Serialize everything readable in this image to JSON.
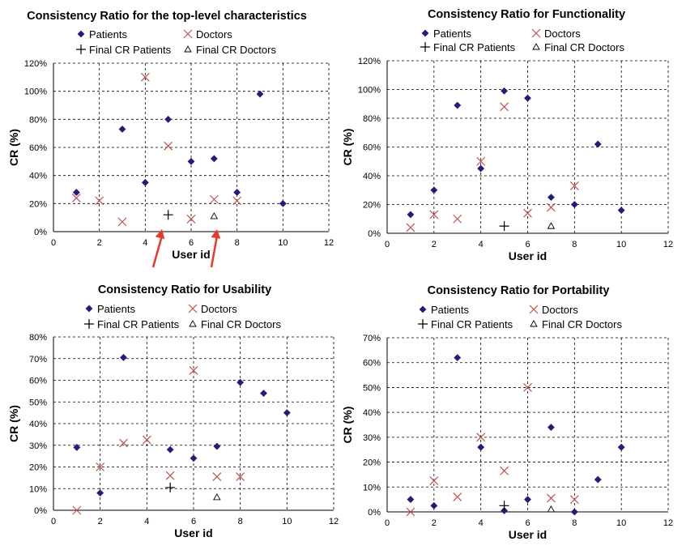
{
  "legend_labels": {
    "patients": "Patients",
    "doctors": "Doctors",
    "final_cr_patients": "Final CR Patients",
    "final_cr_doctors": "Final CR Doctors"
  },
  "colors": {
    "patients": "#1f1f7a",
    "doctors": "#c0504d",
    "final": "#000000",
    "grid": "#000000",
    "arrow": "#e8392a"
  },
  "chart_data": [
    {
      "id": "top",
      "type": "scatter",
      "title": "Consistency Ratio for the top-level characteristics",
      "xlabel": "User id",
      "ylabel": "CR (%)",
      "xlim": [
        0,
        12
      ],
      "ylim": [
        0,
        120
      ],
      "x_ticks": [
        0,
        2,
        4,
        6,
        8,
        10,
        12
      ],
      "y_ticks": [
        0,
        20,
        40,
        60,
        80,
        100,
        120
      ],
      "y_tick_labels": [
        "0%",
        "20%",
        "40%",
        "60%",
        "80%",
        "100%",
        "120%"
      ],
      "grid": true,
      "annotation": "two red arrows pointing at the final CR markers",
      "series": [
        {
          "name": "Patients",
          "marker": "diamond",
          "x": [
            1,
            3,
            4,
            5,
            6,
            7,
            8,
            9,
            10
          ],
          "y": [
            28,
            73,
            35,
            80,
            50,
            52,
            28,
            98,
            20
          ]
        },
        {
          "name": "Doctors",
          "marker": "x",
          "x": [
            1,
            2,
            3,
            4,
            5,
            6,
            7,
            8
          ],
          "y": [
            24,
            22,
            7,
            110,
            61,
            9,
            23,
            22
          ]
        },
        {
          "name": "Final CR Patients",
          "marker": "plus",
          "x": [
            5
          ],
          "y": [
            12
          ]
        },
        {
          "name": "Final CR Doctors",
          "marker": "triangle",
          "x": [
            7
          ],
          "y": [
            11
          ]
        }
      ]
    },
    {
      "id": "functionality",
      "type": "scatter",
      "title": "Consistency Ratio for Functionality",
      "xlabel": "User id",
      "ylabel": "CR (%)",
      "xlim": [
        0,
        12
      ],
      "ylim": [
        0,
        120
      ],
      "x_ticks": [
        0,
        2,
        4,
        6,
        8,
        10,
        12
      ],
      "y_ticks": [
        0,
        20,
        40,
        60,
        80,
        100,
        120
      ],
      "y_tick_labels": [
        "0%",
        "20%",
        "40%",
        "60%",
        "80%",
        "100%",
        "120%"
      ],
      "grid": true,
      "series": [
        {
          "name": "Patients",
          "marker": "diamond",
          "x": [
            1,
            2,
            3,
            4,
            5,
            6,
            7,
            8,
            9,
            10
          ],
          "y": [
            13,
            30,
            89,
            45,
            99,
            94,
            25,
            20,
            62,
            16
          ]
        },
        {
          "name": "Doctors",
          "marker": "x",
          "x": [
            1,
            2,
            3,
            4,
            5,
            6,
            7,
            8
          ],
          "y": [
            4,
            13,
            10,
            50,
            88,
            14,
            18,
            33
          ]
        },
        {
          "name": "Final CR Patients",
          "marker": "plus",
          "x": [
            5
          ],
          "y": [
            5
          ]
        },
        {
          "name": "Final CR Doctors",
          "marker": "triangle",
          "x": [
            7
          ],
          "y": [
            5
          ]
        }
      ]
    },
    {
      "id": "usability",
      "type": "scatter",
      "title": "Consistency Ratio for Usability",
      "xlabel": "User id",
      "ylabel": "CR (%)",
      "xlim": [
        0,
        12
      ],
      "ylim": [
        0,
        80
      ],
      "x_ticks": [
        0,
        2,
        4,
        6,
        8,
        10,
        12
      ],
      "y_ticks": [
        0,
        10,
        20,
        30,
        40,
        50,
        60,
        70,
        80
      ],
      "y_tick_labels": [
        "0%",
        "10%",
        "20%",
        "30%",
        "40%",
        "50%",
        "60%",
        "70%",
        "80%"
      ],
      "grid": true,
      "series": [
        {
          "name": "Patients",
          "marker": "diamond",
          "x": [
            1,
            2,
            3,
            5,
            6,
            7,
            8,
            9,
            10
          ],
          "y": [
            29,
            8,
            70.5,
            28,
            24,
            29.5,
            59,
            54,
            45
          ]
        },
        {
          "name": "Doctors",
          "marker": "x",
          "x": [
            1,
            2,
            3,
            4,
            5,
            6,
            7,
            8
          ],
          "y": [
            0,
            20,
            31,
            32.5,
            16,
            64.5,
            15.5,
            15.5
          ]
        },
        {
          "name": "Final CR Patients",
          "marker": "plus",
          "x": [
            5
          ],
          "y": [
            10.5
          ]
        },
        {
          "name": "Final CR Doctors",
          "marker": "triangle",
          "x": [
            7
          ],
          "y": [
            6
          ]
        }
      ]
    },
    {
      "id": "portability",
      "type": "scatter",
      "title": "Consistency Ratio for Portability",
      "xlabel": "User id",
      "ylabel": "CR (%)",
      "xlim": [
        0,
        12
      ],
      "ylim": [
        0,
        70
      ],
      "x_ticks": [
        0,
        2,
        4,
        6,
        8,
        10,
        12
      ],
      "y_ticks": [
        0,
        10,
        20,
        30,
        40,
        50,
        60,
        70
      ],
      "y_tick_labels": [
        "0%",
        "10%",
        "20%",
        "30%",
        "40%",
        "50%",
        "60%",
        "70%"
      ],
      "grid": true,
      "series": [
        {
          "name": "Patients",
          "marker": "diamond",
          "x": [
            1,
            2,
            3,
            4,
            5,
            6,
            7,
            8,
            9,
            10
          ],
          "y": [
            5,
            2.5,
            62,
            26,
            0.5,
            5,
            34,
            0,
            13,
            26
          ]
        },
        {
          "name": "Doctors",
          "marker": "x",
          "x": [
            1,
            2,
            3,
            4,
            5,
            6,
            7,
            8
          ],
          "y": [
            0,
            12.5,
            6,
            30,
            16.5,
            50,
            5.5,
            5
          ]
        },
        {
          "name": "Final CR Patients",
          "marker": "plus",
          "x": [
            5
          ],
          "y": [
            2.5
          ]
        },
        {
          "name": "Final CR Doctors",
          "marker": "triangle",
          "x": [
            7
          ],
          "y": [
            1
          ]
        }
      ]
    }
  ]
}
